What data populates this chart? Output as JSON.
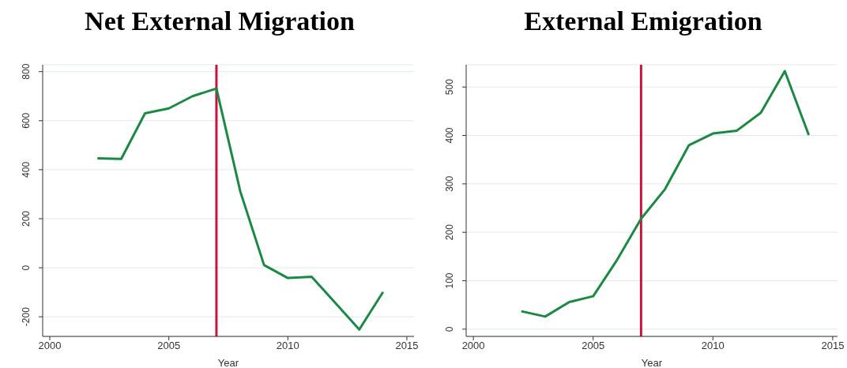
{
  "chart_data": [
    {
      "type": "line",
      "title": "Net External Migration",
      "xlabel": "Year",
      "x": [
        2002,
        2003,
        2004,
        2005,
        2006,
        2007,
        2008,
        2009,
        2010,
        2011,
        2012,
        2013,
        2014
      ],
      "series": [
        {
          "color": "#1a8a42",
          "values": [
            446,
            444,
            630,
            650,
            700,
            731,
            312,
            11,
            -42,
            -37,
            -144,
            -252,
            -99
          ]
        }
      ],
      "xlim": [
        1999.7,
        2015.3
      ],
      "xticks": [
        2000,
        2005,
        2010,
        2015
      ],
      "ylim": [
        -280,
        828
      ],
      "yticks": [
        -200,
        0,
        200,
        400,
        600,
        800
      ],
      "ref_lines": [
        {
          "axis": "x",
          "value": 2007,
          "color": "#c8143c"
        }
      ],
      "grid": "y",
      "legend": false
    },
    {
      "type": "line",
      "title": "External Emigration",
      "xlabel": "Year",
      "x": [
        2002,
        2003,
        2004,
        2005,
        2006,
        2007,
        2008,
        2009,
        2010,
        2011,
        2012,
        2013,
        2014
      ],
      "series": [
        {
          "color": "#1a8a42",
          "values": [
            37,
            26,
            56,
            68,
            143,
            228,
            289,
            380,
            404,
            410,
            447,
            533,
            401
          ]
        }
      ],
      "xlim": [
        1999.7,
        2015.2
      ],
      "xticks": [
        2000,
        2005,
        2010,
        2015
      ],
      "ylim": [
        -15,
        546
      ],
      "yticks": [
        0,
        100,
        200,
        300,
        400,
        500
      ],
      "ref_lines": [
        {
          "axis": "x",
          "value": 2007,
          "color": "#c8143c"
        }
      ],
      "grid": "y",
      "legend": false
    }
  ]
}
